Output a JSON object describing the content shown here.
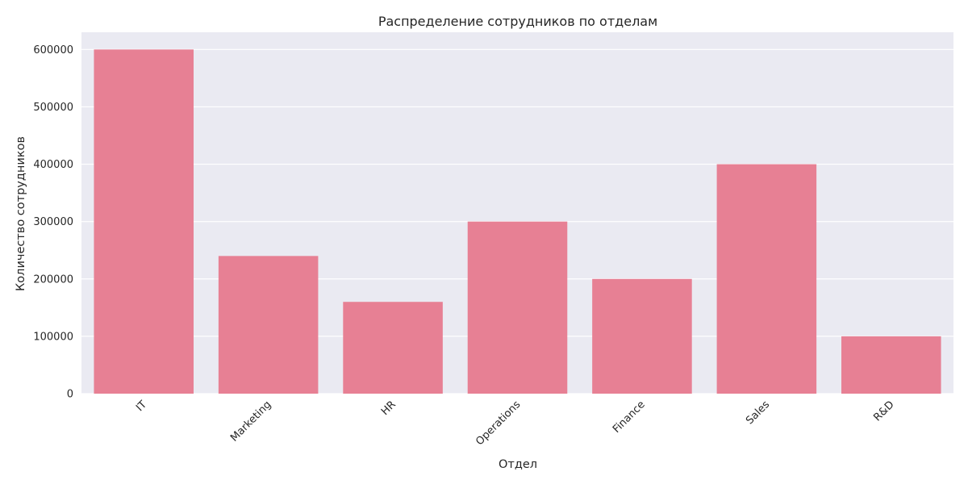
{
  "chart_data": {
    "type": "bar",
    "title": "Распределение сотрудников по отделам",
    "xlabel": "Отдел",
    "ylabel": "Количество сотрудников",
    "categories": [
      "IT",
      "Marketing",
      "HR",
      "Operations",
      "Finance",
      "Sales",
      "R&D"
    ],
    "values": [
      600000,
      240000,
      160000,
      300000,
      200000,
      400000,
      100000
    ],
    "ylim": [
      0,
      630000
    ],
    "yticks": [
      0,
      100000,
      200000,
      300000,
      400000,
      500000,
      600000
    ],
    "grid": true,
    "legend": "none",
    "colors": {
      "bar": "#e78094",
      "plot_background": "#eaeaf2",
      "grid": "#ffffff",
      "text": "#262626"
    }
  }
}
